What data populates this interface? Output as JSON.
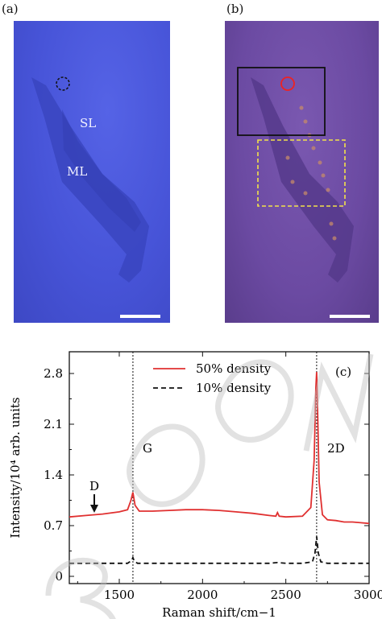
{
  "panels": {
    "a": {
      "label": "(a)",
      "regions": {
        "single_layer": "SL",
        "multi_layer": "ML"
      }
    },
    "b": {
      "label": "(b)"
    },
    "c": {
      "label": "(c)"
    }
  },
  "chart_data": {
    "type": "line",
    "xlabel": "Raman shift/cm−1",
    "ylabel": "Intensity/10⁴ arb. units",
    "xlim": [
      1200,
      3000
    ],
    "ylim": [
      -0.1,
      3.1
    ],
    "xticks": [
      1500,
      2000,
      2500,
      3000
    ],
    "xtick_labels": [
      "1500",
      "2000",
      "2500",
      "3000"
    ],
    "yticks": [
      0,
      0.7,
      1.4,
      2.1,
      2.8
    ],
    "ytick_labels": [
      "0",
      "0.7",
      "1.4",
      "2.1",
      "2.8"
    ],
    "legend_position": "top-center",
    "peak_labels": [
      {
        "text": "D",
        "x": 1350
      },
      {
        "text": "G",
        "x": 1582
      },
      {
        "text": "2D",
        "x": 2685
      }
    ],
    "series": [
      {
        "name": "50% density",
        "color": "#e03030",
        "style": "solid",
        "x": [
          1200,
          1300,
          1400,
          1500,
          1550,
          1570,
          1582,
          1595,
          1620,
          1700,
          1800,
          1900,
          2000,
          2100,
          2200,
          2300,
          2400,
          2440,
          2450,
          2460,
          2500,
          2600,
          2650,
          2670,
          2680,
          2685,
          2690,
          2700,
          2720,
          2750,
          2800,
          2850,
          2900,
          2950,
          3000
        ],
        "y": [
          0.82,
          0.84,
          0.86,
          0.89,
          0.92,
          1.05,
          1.16,
          0.98,
          0.9,
          0.9,
          0.91,
          0.92,
          0.92,
          0.91,
          0.89,
          0.87,
          0.84,
          0.83,
          0.88,
          0.83,
          0.82,
          0.83,
          0.95,
          1.6,
          2.6,
          2.82,
          2.4,
          1.3,
          0.85,
          0.78,
          0.77,
          0.75,
          0.75,
          0.74,
          0.73
        ]
      },
      {
        "name": "10% density",
        "color": "#111111",
        "style": "dashed",
        "x": [
          1200,
          1400,
          1550,
          1575,
          1582,
          1590,
          1610,
          1800,
          2000,
          2200,
          2400,
          2450,
          2500,
          2600,
          2660,
          2675,
          2685,
          2695,
          2710,
          2750,
          2900,
          3000
        ],
        "y": [
          0.18,
          0.18,
          0.18,
          0.22,
          0.26,
          0.21,
          0.18,
          0.18,
          0.18,
          0.18,
          0.18,
          0.19,
          0.18,
          0.18,
          0.2,
          0.32,
          0.55,
          0.32,
          0.2,
          0.18,
          0.18,
          0.18
        ]
      }
    ]
  }
}
